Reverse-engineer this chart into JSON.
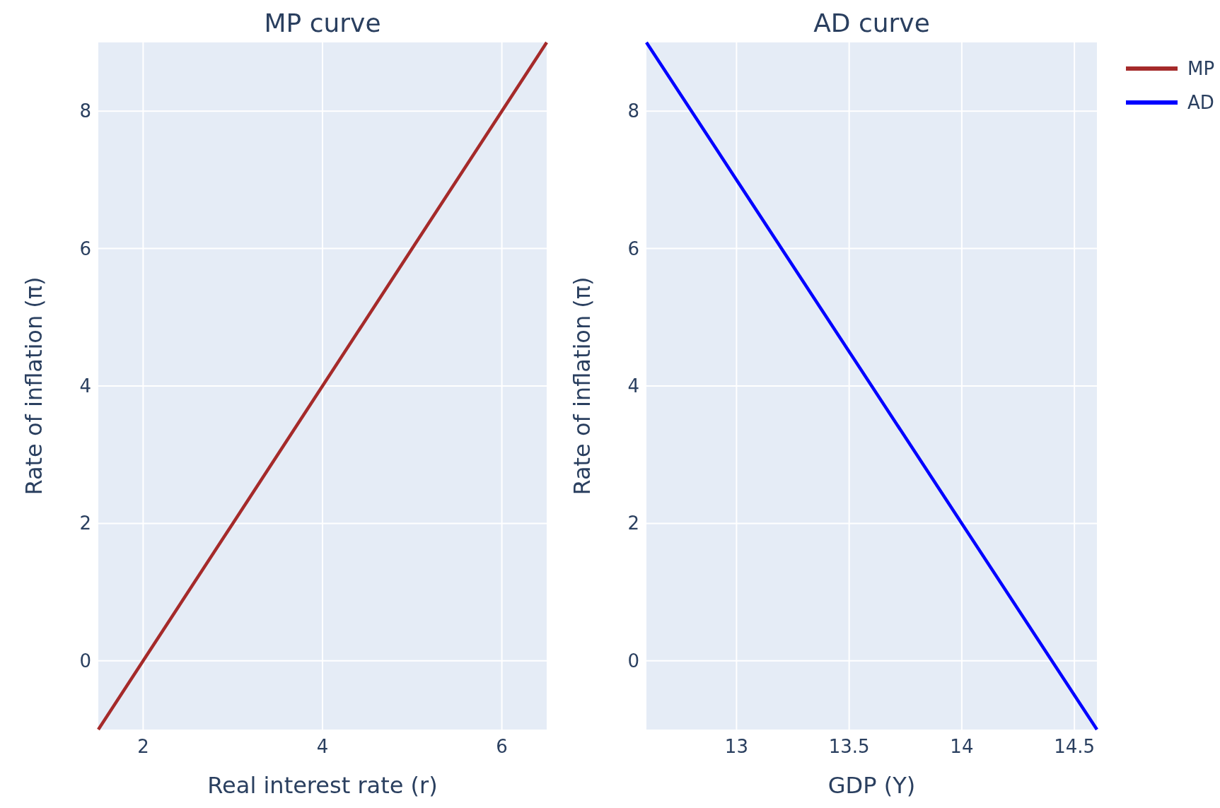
{
  "chart_data": [
    {
      "type": "line",
      "title": "MP curve",
      "xlabel": "Real interest rate (r)",
      "ylabel": "Rate of inflation (π)",
      "xlim": [
        1.5,
        6.5
      ],
      "xticks": [
        2,
        4,
        6
      ],
      "ylim": [
        -1,
        9
      ],
      "yticks": [
        0,
        2,
        4,
        6,
        8
      ],
      "grid": true,
      "legend": "top right",
      "line_style": "solid",
      "series": [
        {
          "name": "MP",
          "color": "#a52a2a",
          "x": [
            1.5,
            2,
            3,
            4,
            5,
            6,
            6.5
          ],
          "values": [
            -1,
            0,
            2,
            4,
            6,
            8,
            9
          ]
        }
      ]
    },
    {
      "type": "line",
      "title": "AD curve",
      "xlabel": "GDP (Y)",
      "ylabel": "Rate of inflation (π)",
      "xlim": [
        12.6,
        14.6
      ],
      "xticks": [
        13,
        13.5,
        14,
        14.5
      ],
      "ylim": [
        -1,
        9
      ],
      "yticks": [
        0,
        2,
        4,
        6,
        8
      ],
      "grid": true,
      "legend": "top right",
      "line_style": "solid",
      "series": [
        {
          "name": "AD",
          "color": "#0000ff",
          "x": [
            12.6,
            13,
            13.5,
            14,
            14.6
          ],
          "values": [
            9,
            7,
            4.5,
            2,
            -1
          ]
        }
      ]
    }
  ]
}
